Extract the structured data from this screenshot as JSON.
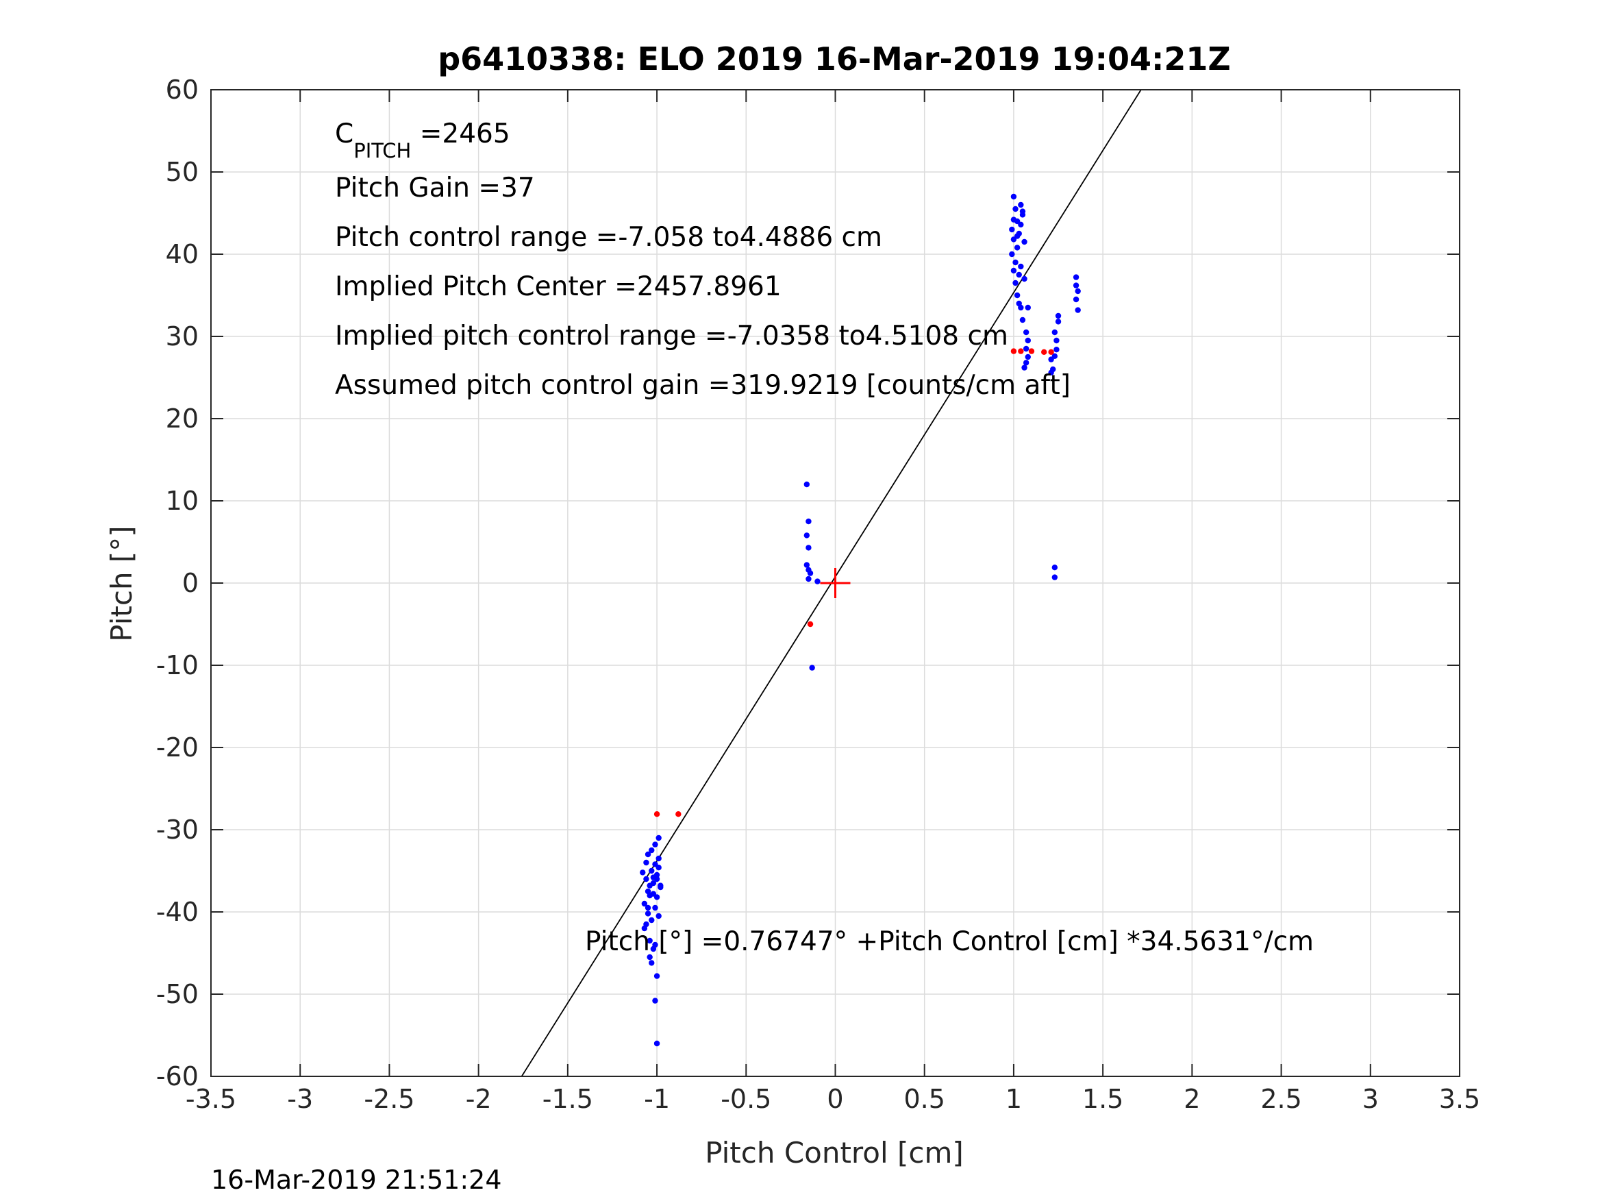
{
  "chart_data": {
    "type": "scatter",
    "title": "p6410338: ELO 2019 16-Mar-2019 19:04:21Z",
    "xlabel": "Pitch Control [cm]",
    "ylabel": "Pitch [°]",
    "xlim": [
      -3.5,
      3.5
    ],
    "ylim": [
      -60,
      60
    ],
    "xticks": [
      "-3.5",
      "-3",
      "-2.5",
      "-2",
      "-1.5",
      "-1",
      "-0.5",
      "0",
      "0.5",
      "1",
      "1.5",
      "2",
      "2.5",
      "3",
      "3.5"
    ],
    "yticks": [
      "60",
      "50",
      "40",
      "30",
      "20",
      "10",
      "0",
      "-10",
      "-20",
      "-30",
      "-40",
      "-50",
      "-60"
    ],
    "grid": true,
    "colors": {
      "blue_points": "#0000ff",
      "red_points": "#ff0000",
      "fit_line": "#000000",
      "grid": "#dcdcdc",
      "axes": "#262626"
    },
    "annotations": {
      "c_pitch_main": "C",
      "c_pitch_sub": "PITCH",
      "c_pitch_value": " =2465",
      "pitch_gain": "Pitch Gain =37",
      "control_range": "Pitch control range =-7.058 to4.4886 cm",
      "implied_center": "Implied Pitch Center =2457.8961",
      "implied_range": "Implied pitch control range =-7.0358 to4.5108 cm",
      "assumed_gain": "Assumed pitch control gain =319.9219 [counts/cm aft]",
      "fit_equation": "Pitch [°] =0.76747° +Pitch Control [cm] *34.5631°/cm"
    },
    "fit_line": {
      "intercept": 0.76747,
      "slope": 34.5631
    },
    "center_marker": {
      "x": 0,
      "y": 0
    },
    "series": [
      {
        "color": "blue",
        "points": [
          [
            -1.08,
            -35.2
          ],
          [
            -1.06,
            -36.0
          ],
          [
            -1.05,
            -37.5
          ],
          [
            -1.04,
            -38.0
          ],
          [
            -1.03,
            -35.0
          ],
          [
            -1.02,
            -36.5
          ],
          [
            -1.01,
            -34.2
          ],
          [
            -1.0,
            -35.5
          ],
          [
            -0.99,
            -33.5
          ],
          [
            -0.98,
            -36.8
          ],
          [
            -1.05,
            -33.0
          ],
          [
            -1.03,
            -32.5
          ],
          [
            -1.01,
            -31.8
          ],
          [
            -0.99,
            -31.0
          ],
          [
            -1.06,
            -34.0
          ],
          [
            -1.04,
            -36.8
          ],
          [
            -1.02,
            -37.8
          ],
          [
            -1.0,
            -38.2
          ],
          [
            -0.98,
            -37.0
          ],
          [
            -1.07,
            -39.0
          ],
          [
            -1.05,
            -40.2
          ],
          [
            -1.03,
            -41.0
          ],
          [
            -1.01,
            -39.5
          ],
          [
            -0.99,
            -40.5
          ],
          [
            -1.07,
            -42.0
          ],
          [
            -1.04,
            -43.5
          ],
          [
            -1.02,
            -44.5
          ],
          [
            -1.04,
            -45.5
          ],
          [
            -1.03,
            -46.2
          ],
          [
            -1.0,
            -47.8
          ],
          [
            -1.01,
            -50.8
          ],
          [
            -1.0,
            -56.0
          ],
          [
            -1.02,
            -35.8
          ],
          [
            -1.0,
            -36.0
          ],
          [
            -0.99,
            -34.6
          ],
          [
            -1.05,
            -39.5
          ],
          [
            -1.01,
            -44.0
          ],
          [
            -1.06,
            -41.5
          ],
          [
            -0.16,
            12.0
          ],
          [
            -0.15,
            7.5
          ],
          [
            -0.16,
            5.8
          ],
          [
            -0.15,
            4.3
          ],
          [
            -0.16,
            2.2
          ],
          [
            -0.15,
            1.6
          ],
          [
            -0.14,
            1.2
          ],
          [
            -0.15,
            0.5
          ],
          [
            -0.1,
            0.2
          ],
          [
            -0.13,
            -10.3
          ],
          [
            0.99,
            43.0
          ],
          [
            1.0,
            47.0
          ],
          [
            1.01,
            45.5
          ],
          [
            1.02,
            44.0
          ],
          [
            1.03,
            42.5
          ],
          [
            1.04,
            46.0
          ],
          [
            1.05,
            44.8
          ],
          [
            1.06,
            41.5
          ],
          [
            0.99,
            40.0
          ],
          [
            1.0,
            41.8
          ],
          [
            1.01,
            39.0
          ],
          [
            1.02,
            42.2
          ],
          [
            1.03,
            37.5
          ],
          [
            1.04,
            38.5
          ],
          [
            1.05,
            45.2
          ],
          [
            1.0,
            38.0
          ],
          [
            1.01,
            36.5
          ],
          [
            1.02,
            35.0
          ],
          [
            1.03,
            34.0
          ],
          [
            1.04,
            33.5
          ],
          [
            1.05,
            32.0
          ],
          [
            1.06,
            37.0
          ],
          [
            1.07,
            30.5
          ],
          [
            1.08,
            29.5
          ],
          [
            1.07,
            28.5
          ],
          [
            1.08,
            27.5
          ],
          [
            1.07,
            26.8
          ],
          [
            1.06,
            26.2
          ],
          [
            1.08,
            33.5
          ],
          [
            1.0,
            44.2
          ],
          [
            1.02,
            40.8
          ],
          [
            1.04,
            43.6
          ],
          [
            1.21,
            27.2
          ],
          [
            1.22,
            26.0
          ],
          [
            1.21,
            25.6
          ],
          [
            1.23,
            30.5
          ],
          [
            1.24,
            29.5
          ],
          [
            1.25,
            31.8
          ],
          [
            1.25,
            32.5
          ],
          [
            1.24,
            28.4
          ],
          [
            1.23,
            27.6
          ],
          [
            1.35,
            37.2
          ],
          [
            1.35,
            36.2
          ],
          [
            1.36,
            35.5
          ],
          [
            1.35,
            34.5
          ],
          [
            1.36,
            33.2
          ],
          [
            1.23,
            1.9
          ],
          [
            1.23,
            0.7
          ]
        ]
      },
      {
        "color": "red",
        "points": [
          [
            -1.0,
            -28.1
          ],
          [
            -0.88,
            -28.1
          ],
          [
            1.0,
            28.2
          ],
          [
            1.04,
            28.2
          ],
          [
            1.1,
            28.2
          ],
          [
            1.17,
            28.1
          ],
          [
            1.21,
            28.1
          ],
          [
            -0.14,
            -5.0
          ]
        ]
      }
    ]
  },
  "footer_timestamp": "16-Mar-2019 21:51:24"
}
